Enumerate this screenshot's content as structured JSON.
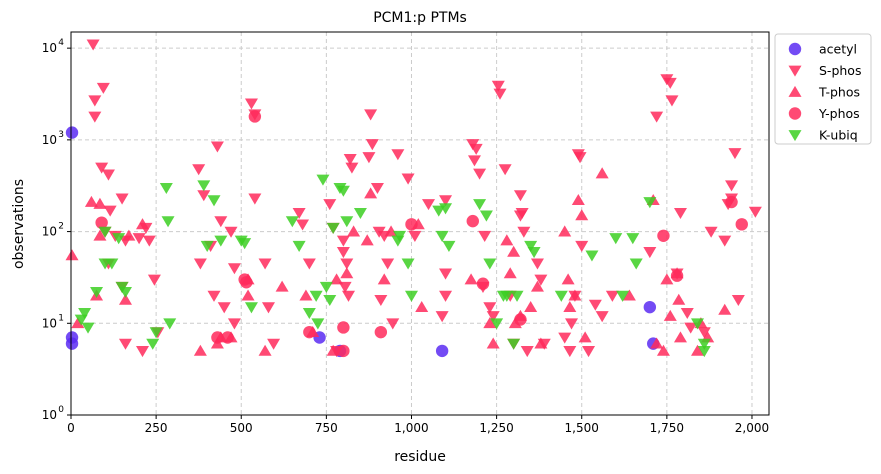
{
  "chart_data": {
    "type": "scatter",
    "title": "PCM1:p PTMs",
    "xlabel": "residue",
    "ylabel": "observations",
    "xlim": [
      0,
      2050
    ],
    "ylim": [
      1,
      15000
    ],
    "yscale": "log",
    "grid": true,
    "legend_position": "outside-top-right",
    "x_ticks": [
      {
        "value": 0,
        "label": "0"
      },
      {
        "value": 250,
        "label": "250"
      },
      {
        "value": 500,
        "label": "500"
      },
      {
        "value": 750,
        "label": "750"
      },
      {
        "value": 1000,
        "label": "1,000"
      },
      {
        "value": 1250,
        "label": "1,250"
      },
      {
        "value": 1500,
        "label": "1,500"
      },
      {
        "value": 1750,
        "label": "1,750"
      },
      {
        "value": 2000,
        "label": "2,000"
      }
    ],
    "y_ticks": [
      {
        "value": 1,
        "base": "10",
        "exp": "0"
      },
      {
        "value": 10,
        "base": "10",
        "exp": "1"
      },
      {
        "value": 100,
        "base": "10",
        "exp": "2"
      },
      {
        "value": 1000,
        "base": "10",
        "exp": "3"
      },
      {
        "value": 10000,
        "base": "10",
        "exp": "4"
      }
    ],
    "series": [
      {
        "name": "acetyl",
        "marker": "circle",
        "color": "#5b2cf2",
        "points": [
          [
            3,
            1200
          ],
          [
            3,
            7
          ],
          [
            3,
            6
          ],
          [
            730,
            7
          ],
          [
            790,
            5
          ],
          [
            1090,
            5
          ],
          [
            1700,
            15
          ],
          [
            1710,
            6
          ]
        ]
      },
      {
        "name": "S-phos",
        "marker": "triangle-down",
        "color": "#ff2a5c",
        "points": [
          [
            65,
            11000
          ],
          [
            70,
            2700
          ],
          [
            70,
            1800
          ],
          [
            95,
            3700
          ],
          [
            90,
            500
          ],
          [
            110,
            420
          ],
          [
            115,
            170
          ],
          [
            100,
            100
          ],
          [
            110,
            45
          ],
          [
            130,
            90
          ],
          [
            150,
            230
          ],
          [
            150,
            25
          ],
          [
            160,
            80
          ],
          [
            160,
            6
          ],
          [
            200,
            85
          ],
          [
            210,
            5
          ],
          [
            220,
            110
          ],
          [
            230,
            80
          ],
          [
            245,
            30
          ],
          [
            255,
            8
          ],
          [
            380,
            45
          ],
          [
            375,
            480
          ],
          [
            390,
            250
          ],
          [
            430,
            850
          ],
          [
            440,
            130
          ],
          [
            410,
            70
          ],
          [
            420,
            20
          ],
          [
            450,
            15
          ],
          [
            470,
            100
          ],
          [
            480,
            40
          ],
          [
            480,
            10
          ],
          [
            530,
            2500
          ],
          [
            540,
            1900
          ],
          [
            540,
            230
          ],
          [
            570,
            45
          ],
          [
            580,
            15
          ],
          [
            595,
            6
          ],
          [
            670,
            160
          ],
          [
            680,
            120
          ],
          [
            700,
            45
          ],
          [
            760,
            200
          ],
          [
            770,
            110
          ],
          [
            780,
            5
          ],
          [
            800,
            80
          ],
          [
            800,
            60
          ],
          [
            810,
            45
          ],
          [
            805,
            25
          ],
          [
            815,
            20
          ],
          [
            820,
            620
          ],
          [
            825,
            500
          ],
          [
            880,
            1900
          ],
          [
            885,
            900
          ],
          [
            875,
            650
          ],
          [
            900,
            300
          ],
          [
            905,
            100
          ],
          [
            910,
            18
          ],
          [
            920,
            90
          ],
          [
            930,
            45
          ],
          [
            945,
            10
          ],
          [
            960,
            700
          ],
          [
            990,
            380
          ],
          [
            1010,
            90
          ],
          [
            1050,
            200
          ],
          [
            1090,
            12
          ],
          [
            1100,
            220
          ],
          [
            1100,
            35
          ],
          [
            1100,
            20
          ],
          [
            1180,
            900
          ],
          [
            1190,
            800
          ],
          [
            1185,
            600
          ],
          [
            1200,
            430
          ],
          [
            1210,
            25
          ],
          [
            1215,
            90
          ],
          [
            1230,
            15
          ],
          [
            1240,
            12
          ],
          [
            1255,
            3900
          ],
          [
            1260,
            3200
          ],
          [
            1275,
            480
          ],
          [
            1290,
            20
          ],
          [
            1300,
            6
          ],
          [
            1320,
            250
          ],
          [
            1325,
            160
          ],
          [
            1320,
            150
          ],
          [
            1330,
            100
          ],
          [
            1340,
            5
          ],
          [
            1370,
            45
          ],
          [
            1380,
            30
          ],
          [
            1390,
            6
          ],
          [
            1450,
            7
          ],
          [
            1465,
            5
          ],
          [
            1470,
            10
          ],
          [
            1480,
            20
          ],
          [
            1490,
            700
          ],
          [
            1495,
            650
          ],
          [
            1500,
            70
          ],
          [
            1520,
            5
          ],
          [
            1540,
            16
          ],
          [
            1560,
            12
          ],
          [
            1590,
            20
          ],
          [
            1700,
            60
          ],
          [
            1720,
            1800
          ],
          [
            1750,
            4600
          ],
          [
            1760,
            4200
          ],
          [
            1765,
            2700
          ],
          [
            1780,
            35
          ],
          [
            1790,
            160
          ],
          [
            1810,
            13
          ],
          [
            1820,
            9
          ],
          [
            1860,
            8
          ],
          [
            1880,
            100
          ],
          [
            1920,
            80
          ],
          [
            1930,
            200
          ],
          [
            1940,
            230
          ],
          [
            1940,
            320
          ],
          [
            1950,
            720
          ],
          [
            1960,
            18
          ],
          [
            2010,
            165
          ]
        ]
      },
      {
        "name": "T-phos",
        "marker": "triangle-up",
        "color": "#ff2a5c",
        "points": [
          [
            3,
            55
          ],
          [
            20,
            10
          ],
          [
            60,
            210
          ],
          [
            75,
            20
          ],
          [
            85,
            200
          ],
          [
            85,
            90
          ],
          [
            160,
            18
          ],
          [
            170,
            90
          ],
          [
            210,
            120
          ],
          [
            380,
            5
          ],
          [
            430,
            6
          ],
          [
            440,
            7
          ],
          [
            470,
            7
          ],
          [
            520,
            20
          ],
          [
            520,
            30
          ],
          [
            570,
            5
          ],
          [
            620,
            25
          ],
          [
            690,
            20
          ],
          [
            710,
            8
          ],
          [
            770,
            5
          ],
          [
            780,
            30
          ],
          [
            810,
            35
          ],
          [
            830,
            100
          ],
          [
            870,
            80
          ],
          [
            880,
            260
          ],
          [
            920,
            30
          ],
          [
            940,
            100
          ],
          [
            1020,
            120
          ],
          [
            1030,
            15
          ],
          [
            1175,
            30
          ],
          [
            1230,
            10
          ],
          [
            1240,
            6
          ],
          [
            1280,
            80
          ],
          [
            1290,
            35
          ],
          [
            1300,
            60
          ],
          [
            1305,
            10
          ],
          [
            1320,
            12
          ],
          [
            1350,
            15
          ],
          [
            1370,
            25
          ],
          [
            1380,
            6
          ],
          [
            1450,
            100
          ],
          [
            1460,
            30
          ],
          [
            1465,
            15
          ],
          [
            1480,
            20
          ],
          [
            1490,
            220
          ],
          [
            1500,
            150
          ],
          [
            1510,
            7
          ],
          [
            1560,
            430
          ],
          [
            1640,
            20
          ],
          [
            1710,
            220
          ],
          [
            1720,
            6
          ],
          [
            1740,
            5
          ],
          [
            1750,
            30
          ],
          [
            1760,
            12
          ],
          [
            1780,
            35
          ],
          [
            1785,
            18
          ],
          [
            1790,
            7
          ],
          [
            1840,
            5
          ],
          [
            1850,
            10
          ],
          [
            1870,
            7
          ],
          [
            1920,
            14
          ]
        ]
      },
      {
        "name": "Y-phos",
        "marker": "circle",
        "color": "#ff2a5c",
        "points": [
          [
            90,
            125
          ],
          [
            430,
            7
          ],
          [
            460,
            7
          ],
          [
            510,
            30
          ],
          [
            515,
            28
          ],
          [
            540,
            1800
          ],
          [
            700,
            8
          ],
          [
            800,
            5
          ],
          [
            800,
            9
          ],
          [
            910,
            8
          ],
          [
            1000,
            120
          ],
          [
            1180,
            130
          ],
          [
            1210,
            27
          ],
          [
            1320,
            11
          ],
          [
            1740,
            90
          ],
          [
            1780,
            33
          ],
          [
            1940,
            210
          ],
          [
            1970,
            120
          ]
        ]
      },
      {
        "name": "K-ubiq",
        "marker": "triangle-down",
        "color": "#3ccf22",
        "points": [
          [
            30,
            11
          ],
          [
            40,
            13
          ],
          [
            50,
            9
          ],
          [
            75,
            22
          ],
          [
            100,
            100
          ],
          [
            100,
            45
          ],
          [
            120,
            45
          ],
          [
            140,
            85
          ],
          [
            150,
            25
          ],
          [
            160,
            22
          ],
          [
            240,
            6
          ],
          [
            250,
            8
          ],
          [
            280,
            300
          ],
          [
            285,
            130
          ],
          [
            290,
            10
          ],
          [
            390,
            320
          ],
          [
            400,
            70
          ],
          [
            420,
            220
          ],
          [
            440,
            80
          ],
          [
            500,
            80
          ],
          [
            510,
            75
          ],
          [
            530,
            15
          ],
          [
            650,
            130
          ],
          [
            670,
            70
          ],
          [
            700,
            13
          ],
          [
            720,
            20
          ],
          [
            725,
            10
          ],
          [
            740,
            370
          ],
          [
            750,
            25
          ],
          [
            760,
            18
          ],
          [
            770,
            110
          ],
          [
            790,
            300
          ],
          [
            800,
            280
          ],
          [
            810,
            130
          ],
          [
            850,
            160
          ],
          [
            960,
            80
          ],
          [
            965,
            90
          ],
          [
            990,
            45
          ],
          [
            1000,
            20
          ],
          [
            1080,
            170
          ],
          [
            1090,
            90
          ],
          [
            1100,
            180
          ],
          [
            1110,
            70
          ],
          [
            1200,
            200
          ],
          [
            1220,
            150
          ],
          [
            1230,
            45
          ],
          [
            1250,
            10
          ],
          [
            1270,
            20
          ],
          [
            1280,
            20
          ],
          [
            1300,
            6
          ],
          [
            1310,
            20
          ],
          [
            1350,
            70
          ],
          [
            1360,
            60
          ],
          [
            1440,
            20
          ],
          [
            1530,
            55
          ],
          [
            1600,
            85
          ],
          [
            1620,
            20
          ],
          [
            1650,
            85
          ],
          [
            1660,
            45
          ],
          [
            1700,
            210
          ],
          [
            1840,
            10
          ],
          [
            1860,
            5
          ],
          [
            1860,
            6
          ]
        ]
      }
    ]
  }
}
